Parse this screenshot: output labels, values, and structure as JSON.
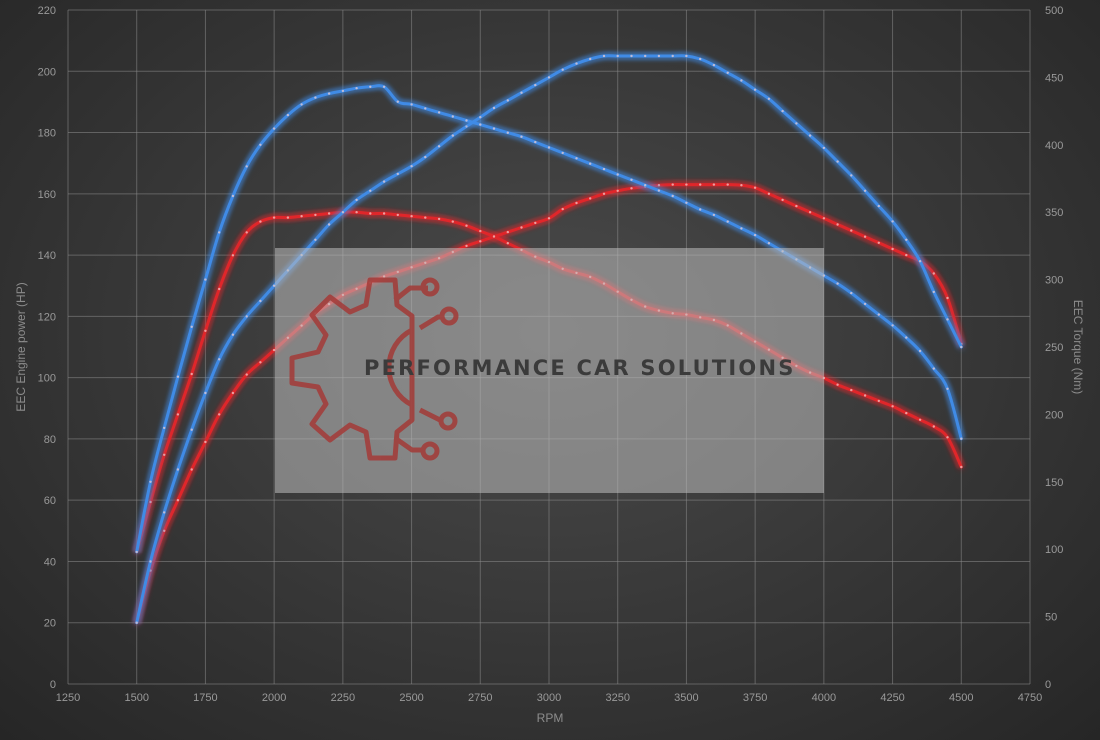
{
  "watermark": {
    "text": "PERFORMANCE CAR SOLUTIONS",
    "logo": "gear-circuit-logo"
  },
  "colors": {
    "background": "#3a3a3a",
    "grid": "#8a8a8a",
    "stock": "#e0262c",
    "tuned": "#3f8be6",
    "watermark_box": "#bdbdbd"
  },
  "chart_data": {
    "type": "line",
    "xlabel": "RPM",
    "ylabel": "EEC Engine power (HP)",
    "y2label": "EEC Torque (Nm)",
    "xlim": [
      1250,
      4750
    ],
    "ylim": [
      0,
      220
    ],
    "y2lim": [
      0,
      500
    ],
    "xticks": [
      "1250",
      "1500",
      "1750",
      "2000",
      "2250",
      "2500",
      "2750",
      "3000",
      "3250",
      "3500",
      "3750",
      "4000",
      "4250",
      "4500",
      "4750"
    ],
    "yticks": [
      "0",
      "20",
      "40",
      "60",
      "80",
      "100",
      "120",
      "140",
      "160",
      "180",
      "200",
      "220"
    ],
    "y2ticks": [
      "0",
      "50",
      "100",
      "150",
      "200",
      "250",
      "300",
      "350",
      "400",
      "450",
      "500"
    ],
    "grid": true,
    "series": [
      {
        "axis": "left",
        "color": "#e0262c",
        "x": [
          1500,
          1550,
          1600,
          1650,
          1700,
          1750,
          1800,
          1850,
          1900,
          1950,
          2000,
          2050,
          2100,
          2150,
          2200,
          2250,
          2300,
          2350,
          2400,
          2450,
          2500,
          2550,
          2600,
          2650,
          2700,
          2750,
          2800,
          2850,
          2900,
          2950,
          3000,
          3050,
          3100,
          3150,
          3200,
          3250,
          3300,
          3350,
          3400,
          3450,
          3500,
          3550,
          3600,
          3650,
          3700,
          3750,
          3800,
          3850,
          3900,
          3950,
          4000,
          4050,
          4100,
          4150,
          4200,
          4250,
          4300,
          4350,
          4400,
          4450,
          4500
        ],
        "y": [
          20,
          37,
          50,
          60,
          70,
          79,
          88,
          95,
          101,
          105,
          109,
          113,
          117,
          121,
          124,
          127,
          129,
          131,
          133,
          134.5,
          136,
          137.5,
          139,
          141,
          143,
          144.5,
          146,
          147.5,
          149,
          150.5,
          152,
          155,
          157,
          158.5,
          160,
          161,
          161.8,
          162.4,
          162.8,
          163,
          163,
          163,
          163,
          163,
          162.8,
          162,
          160,
          158,
          156,
          154,
          152,
          150,
          148,
          146,
          144,
          142,
          140,
          138,
          134,
          126,
          111
        ]
      },
      {
        "axis": "right",
        "color": "#e0262c",
        "x": [
          1500,
          1550,
          1600,
          1650,
          1700,
          1750,
          1800,
          1850,
          1900,
          1950,
          2000,
          2050,
          2100,
          2150,
          2200,
          2250,
          2300,
          2350,
          2400,
          2450,
          2500,
          2550,
          2600,
          2650,
          2700,
          2750,
          2800,
          2850,
          2900,
          2950,
          3000,
          3050,
          3100,
          3150,
          3200,
          3250,
          3300,
          3350,
          3400,
          3450,
          3500,
          3550,
          3600,
          3650,
          3700,
          3750,
          3800,
          3850,
          3900,
          3950,
          4000,
          4050,
          4100,
          4150,
          4200,
          4250,
          4300,
          4350,
          4400,
          4450,
          4500
        ],
        "y": [
          98,
          135,
          170,
          200,
          230,
          262,
          293,
          318,
          335,
          343,
          346,
          346,
          347,
          348,
          349,
          350,
          350,
          349,
          349,
          348,
          347,
          346,
          345,
          343,
          340,
          336,
          332,
          327,
          322,
          317,
          313,
          308,
          305,
          302,
          297,
          291,
          285,
          280,
          277,
          275,
          274,
          272,
          270,
          266,
          260,
          254,
          248,
          242,
          236,
          231,
          227,
          222,
          218,
          214,
          210,
          206,
          201,
          196,
          191,
          183,
          161
        ]
      },
      {
        "axis": "left",
        "color": "#3f8be6",
        "x": [
          1500,
          1550,
          1600,
          1650,
          1700,
          1750,
          1800,
          1850,
          1900,
          1950,
          2000,
          2050,
          2100,
          2150,
          2200,
          2250,
          2300,
          2350,
          2400,
          2450,
          2500,
          2550,
          2600,
          2650,
          2700,
          2750,
          2800,
          2850,
          2900,
          2950,
          3000,
          3050,
          3100,
          3150,
          3200,
          3250,
          3300,
          3350,
          3400,
          3450,
          3500,
          3550,
          3600,
          3650,
          3700,
          3750,
          3800,
          3850,
          3900,
          3950,
          4000,
          4050,
          4100,
          4150,
          4200,
          4250,
          4300,
          4350,
          4400,
          4450,
          4500
        ],
        "y": [
          20,
          40,
          56,
          70,
          83,
          95,
          106,
          114,
          120,
          125,
          130,
          135,
          140,
          145,
          150,
          154,
          158,
          161,
          164,
          166.5,
          169,
          172,
          175.5,
          179,
          182,
          185,
          188,
          190.5,
          193,
          195.5,
          198,
          200.5,
          202.5,
          204,
          205,
          205,
          205,
          205,
          205,
          205,
          205,
          204,
          202,
          199.5,
          197,
          194,
          191,
          187,
          183,
          179,
          175,
          170.5,
          166,
          161,
          156,
          151,
          145,
          138,
          128,
          119,
          110
        ]
      },
      {
        "axis": "right",
        "color": "#3f8be6",
        "x": [
          1500,
          1550,
          1600,
          1650,
          1700,
          1750,
          1800,
          1850,
          1900,
          1950,
          2000,
          2050,
          2100,
          2150,
          2200,
          2250,
          2300,
          2350,
          2400,
          2450,
          2500,
          2550,
          2600,
          2650,
          2700,
          2750,
          2800,
          2850,
          2900,
          2950,
          3000,
          3050,
          3100,
          3150,
          3200,
          3250,
          3300,
          3350,
          3400,
          3450,
          3500,
          3550,
          3600,
          3650,
          3700,
          3750,
          3800,
          3850,
          3900,
          3950,
          4000,
          4050,
          4100,
          4150,
          4200,
          4250,
          4300,
          4350,
          4400,
          4450,
          4500
        ],
        "y": [
          98,
          150,
          190,
          228,
          265,
          300,
          335,
          362,
          384,
          400,
          412,
          422,
          430,
          435,
          438,
          440,
          442,
          443,
          443,
          432,
          430,
          427,
          424,
          421,
          418,
          415,
          412,
          409,
          406,
          402,
          398,
          394,
          390,
          386,
          382,
          378,
          374,
          370,
          366,
          362,
          357,
          352,
          348,
          343,
          338,
          333,
          327,
          321,
          315,
          309,
          303,
          297,
          290,
          282,
          274,
          266,
          257,
          247,
          234,
          219,
          182
        ]
      }
    ]
  }
}
